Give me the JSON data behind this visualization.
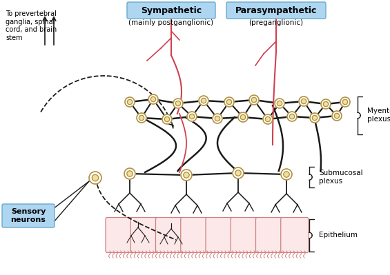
{
  "bg_color": "#ffffff",
  "sympathetic_label": "Sympathetic",
  "sympathetic_sub": "(mainly postganglionic)",
  "parasympathetic_label": "Parasympathetic",
  "parasympathetic_sub": "(preganglionic)",
  "prevertebral_text": "To prevertebral\nganglia, spinal\ncord, and brain\nstem",
  "myenteric_label": "Myenteric\nplexus",
  "submucosal_label": "Submucosal\nplexus",
  "epithelium_label": "Epithelium",
  "sensory_label": "Sensory\nneurons",
  "nerve_color_black": "#1a1a1a",
  "nerve_color_red": "#d04050",
  "neuron_body_color": "#f0e0a0",
  "neuron_ring_color": "#b09040",
  "box_bg": "#aed6f0",
  "box_edge": "#6aaad0",
  "epithelium_fill": "#fce8e8",
  "epithelium_border": "#d08080",
  "sensory_box_color": "#aed6f0"
}
